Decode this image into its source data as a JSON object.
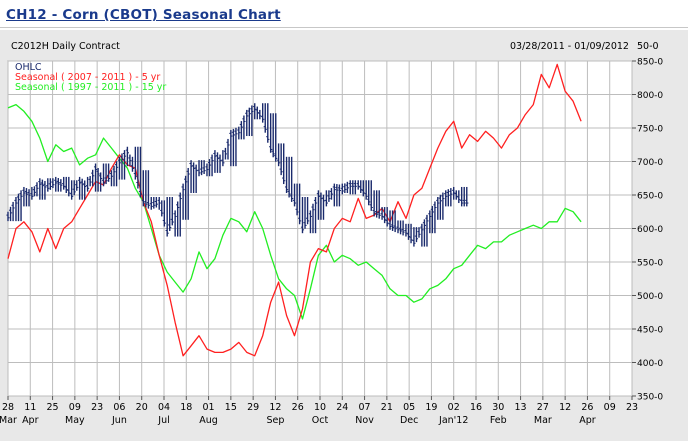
{
  "page": {
    "title": "CH12 - Corn (CBOT) Seasonal Chart"
  },
  "chart_header": {
    "contract_label": "C2012H Daily Contract",
    "date_range": "03/28/2011 - 01/09/2012",
    "corner_label": "50-0"
  },
  "colors": {
    "ohlc": "#1a2a6c",
    "seasonal5": "#ff2020",
    "seasonal15": "#22ee22",
    "grid": "#bdbdbd",
    "plot_bg": "#ffffff",
    "panel_bg": "#e8e8e8"
  },
  "chart_data": {
    "type": "line",
    "x_unit": "calendar days, 28 Mar 2011 to 24 Apr 2012",
    "ylim": [
      350,
      850
    ],
    "y_ticks": [
      "350-0",
      "400-0",
      "450-0",
      "500-0",
      "550-0",
      "600-0",
      "650-0",
      "700-0",
      "750-0",
      "800-0",
      "850-0"
    ],
    "grid": true,
    "legend_position": "top-left",
    "x_ticks": [
      {
        "day": "28",
        "month": "Mar"
      },
      {
        "day": "11",
        "month": "Apr"
      },
      {
        "day": "25",
        "month": ""
      },
      {
        "day": "09",
        "month": "May"
      },
      {
        "day": "23",
        "month": ""
      },
      {
        "day": "06",
        "month": "Jun"
      },
      {
        "day": "20",
        "month": ""
      },
      {
        "day": "04",
        "month": "Jul"
      },
      {
        "day": "18",
        "month": ""
      },
      {
        "day": "01",
        "month": "Aug"
      },
      {
        "day": "15",
        "month": ""
      },
      {
        "day": "29",
        "month": ""
      },
      {
        "day": "12",
        "month": "Sep"
      },
      {
        "day": "26",
        "month": ""
      },
      {
        "day": "10",
        "month": "Oct"
      },
      {
        "day": "24",
        "month": ""
      },
      {
        "day": "07",
        "month": "Nov"
      },
      {
        "day": "21",
        "month": ""
      },
      {
        "day": "05",
        "month": "Dec"
      },
      {
        "day": "19",
        "month": ""
      },
      {
        "day": "02",
        "month": "Jan'12"
      },
      {
        "day": "16",
        "month": ""
      },
      {
        "day": "30",
        "month": "Feb"
      },
      {
        "day": "13",
        "month": ""
      },
      {
        "day": "27",
        "month": "Mar"
      },
      {
        "day": "12",
        "month": ""
      },
      {
        "day": "26",
        "month": "Apr"
      },
      {
        "day": "09",
        "month": ""
      },
      {
        "day": "23",
        "month": ""
      }
    ],
    "series": [
      {
        "name": "OHLC",
        "kind": "ohlc",
        "x": [
          0,
          5,
          10,
          15,
          20,
          25,
          30,
          35,
          40,
          45,
          50,
          55,
          60,
          65,
          70,
          75,
          80,
          85,
          90,
          95,
          100,
          105,
          110,
          115,
          120,
          125,
          130,
          135,
          140,
          145,
          150,
          155,
          160,
          165,
          170,
          175,
          180,
          185,
          190,
          195,
          200,
          205,
          210,
          215,
          220,
          225,
          230,
          235,
          240,
          245,
          250,
          255,
          260,
          265,
          270,
          275,
          280,
          285
        ],
        "values": [
          618,
          640,
          655,
          650,
          668,
          662,
          670,
          665,
          650,
          670,
          662,
          690,
          670,
          680,
          700,
          715,
          680,
          640,
          635,
          640,
          595,
          620,
          660,
          695,
          685,
          690,
          710,
          700,
          740,
          745,
          770,
          780,
          765,
          720,
          700,
          660,
          640,
          600,
          620,
          650,
          640,
          660,
          658,
          665,
          665,
          650,
          625,
          620,
          605,
          600,
          595,
          580,
          600,
          620,
          640,
          650,
          655,
          640
        ]
      },
      {
        "name": "Seasonal ( 2007 - 2011 ) - 5 yr",
        "kind": "line",
        "x": [
          0,
          5,
          10,
          15,
          20,
          25,
          30,
          35,
          40,
          45,
          50,
          55,
          60,
          65,
          70,
          75,
          80,
          85,
          90,
          95,
          100,
          105,
          110,
          115,
          120,
          125,
          130,
          135,
          140,
          145,
          150,
          155,
          160,
          165,
          170,
          175,
          180,
          185,
          190,
          195,
          200,
          205,
          210,
          215,
          220,
          225,
          230,
          235,
          240,
          245,
          250,
          255,
          260,
          265,
          270,
          275,
          280,
          285,
          290,
          295,
          300,
          305,
          310,
          315,
          320,
          325,
          330,
          335,
          340,
          345,
          350,
          355,
          360
        ],
        "values": [
          555,
          600,
          610,
          595,
          565,
          600,
          570,
          600,
          610,
          630,
          650,
          670,
          665,
          690,
          710,
          695,
          690,
          640,
          610,
          560,
          515,
          460,
          410,
          425,
          440,
          420,
          415,
          415,
          420,
          430,
          415,
          410,
          440,
          490,
          520,
          470,
          440,
          480,
          550,
          570,
          565,
          600,
          615,
          610,
          645,
          615,
          620,
          630,
          610,
          640,
          615,
          650,
          660,
          690,
          720,
          745,
          760,
          720,
          740,
          730,
          745,
          735,
          720,
          740,
          750,
          770,
          785,
          830,
          810,
          845,
          805,
          790,
          760
        ]
      },
      {
        "name": "Seasonal ( 1997 - 2011 ) - 15 yr",
        "kind": "line",
        "x": [
          0,
          5,
          10,
          15,
          20,
          25,
          30,
          35,
          40,
          45,
          50,
          55,
          60,
          65,
          70,
          75,
          80,
          85,
          90,
          95,
          100,
          105,
          110,
          115,
          120,
          125,
          130,
          135,
          140,
          145,
          150,
          155,
          160,
          165,
          170,
          175,
          180,
          185,
          190,
          195,
          200,
          205,
          210,
          215,
          220,
          225,
          230,
          235,
          240,
          245,
          250,
          255,
          260,
          265,
          270,
          275,
          280,
          285,
          290,
          295,
          300,
          305,
          310,
          315,
          320,
          325,
          330,
          335,
          340,
          345,
          350,
          355,
          360
        ],
        "values": [
          780,
          785,
          775,
          760,
          735,
          700,
          725,
          715,
          720,
          695,
          705,
          710,
          735,
          720,
          705,
          690,
          660,
          640,
          600,
          560,
          535,
          520,
          505,
          525,
          565,
          540,
          555,
          590,
          615,
          610,
          595,
          625,
          600,
          560,
          525,
          510,
          500,
          465,
          510,
          560,
          575,
          550,
          560,
          555,
          545,
          550,
          540,
          530,
          510,
          500,
          500,
          490,
          495,
          510,
          515,
          525,
          540,
          545,
          560,
          575,
          570,
          580,
          580,
          590,
          595,
          600,
          605,
          600,
          610,
          610,
          630,
          625,
          610
        ]
      }
    ]
  }
}
